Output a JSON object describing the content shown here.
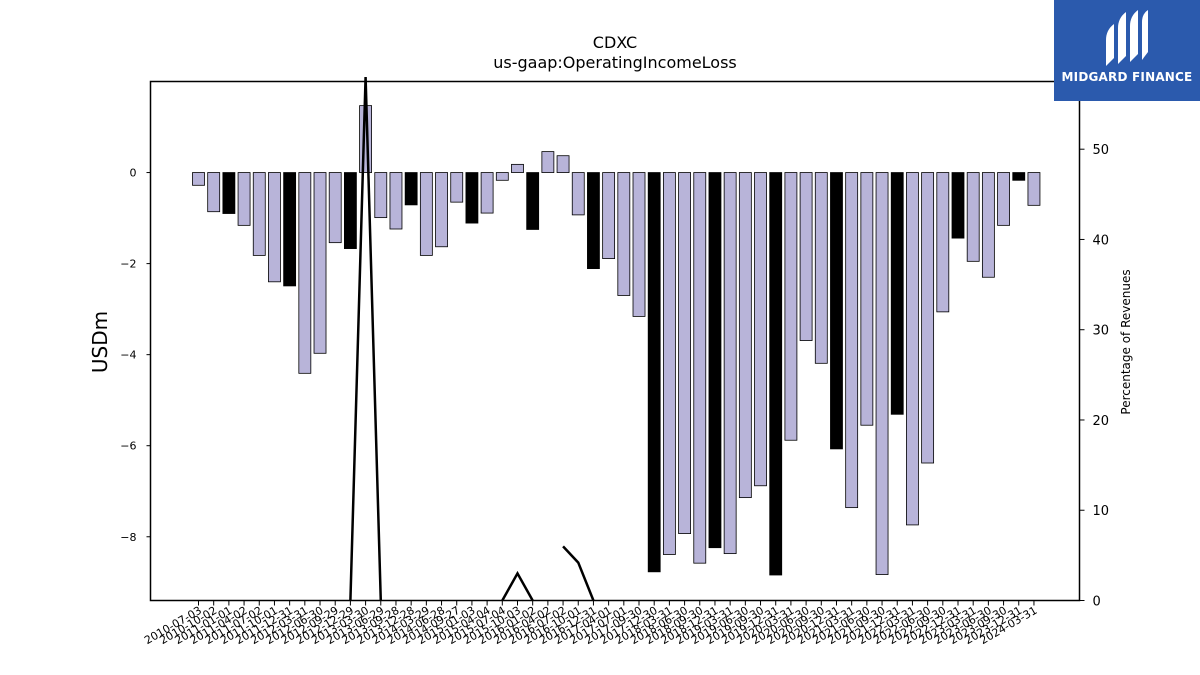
{
  "chart_data": {
    "type": "bar",
    "title": "CDXC",
    "subtitle": "us-gaap:OperatingIncomeLoss",
    "ylabel": "USDm",
    "y2label": "Percentage of Revenues",
    "ylim": [
      -9.4,
      2.0
    ],
    "y2lim": [
      0,
      57.5
    ],
    "yticks": [
      0,
      -2,
      -4,
      -6,
      -8
    ],
    "y2ticks": [
      0,
      10,
      20,
      30,
      40,
      50
    ],
    "x_tick_labels": [
      "2010-07-03",
      "2010-10-02",
      "2011-01-01",
      "2011-04-02",
      "2011-07-02",
      "2011-10-01",
      "2011-12-31",
      "2012-03-31",
      "2012-06-30",
      "2012-09-29",
      "2012-12-29",
      "2013-03-30",
      "2013-06-29",
      "2013-09-28",
      "2013-12-28",
      "2014-03-29",
      "2014-06-28",
      "2014-09-27",
      "2015-01-03",
      "2015-04-04",
      "2015-07-04",
      "2015-10-03",
      "2016-01-02",
      "2016-04-02",
      "2016-07-02",
      "2016-10-01",
      "2016-12-31",
      "2017-04-01",
      "2017-07-01",
      "2017-09-30",
      "2017-12-30",
      "2018-03-31",
      "2018-06-30",
      "2018-09-30",
      "2018-12-31",
      "2019-03-31",
      "2019-06-30",
      "2019-09-30",
      "2019-12-31",
      "2020-03-31",
      "2020-06-30",
      "2020-09-30",
      "2020-12-31",
      "2021-03-31",
      "2021-06-30",
      "2021-09-30",
      "2021-12-31",
      "2022-03-31",
      "2022-06-30",
      "2022-09-30",
      "2022-12-31",
      "2023-03-31",
      "2023-06-30",
      "2023-09-30",
      "2023-12-31",
      "2024-03-31"
    ],
    "values": [
      -0.28,
      -0.86,
      -0.9,
      -1.16,
      -1.82,
      -2.4,
      -2.49,
      -4.41,
      -3.97,
      -1.54,
      -1.67,
      1.47,
      -0.99,
      -1.24,
      -0.71,
      -1.82,
      -1.63,
      -0.65,
      -1.11,
      -0.89,
      -0.17,
      0.18,
      -1.25,
      0.46,
      0.37,
      -0.93,
      -2.11,
      -1.89,
      -2.7,
      -3.16,
      -8.77,
      -8.39,
      -7.93,
      -8.58,
      -8.24,
      -8.37,
      -7.14,
      -6.88,
      -8.84,
      -5.88,
      -3.69,
      -4.19,
      -6.07,
      -7.36,
      -5.55,
      -8.83,
      -5.31,
      -7.74,
      -6.38,
      -3.06,
      -1.44,
      -1.95,
      -2.3,
      -1.16,
      -0.17,
      -0.72
    ],
    "bar_colors": [
      "#b8b4d9",
      "#b8b4d9",
      "#000000",
      "#b8b4d9",
      "#b8b4d9",
      "#b8b4d9",
      "#000000",
      "#b8b4d9",
      "#b8b4d9",
      "#b8b4d9",
      "#000000",
      "#b8b4d9",
      "#b8b4d9",
      "#b8b4d9",
      "#000000",
      "#b8b4d9",
      "#b8b4d9",
      "#b8b4d9",
      "#000000",
      "#b8b4d9",
      "#b8b4d9",
      "#b8b4d9",
      "#000000",
      "#b8b4d9",
      "#b8b4d9",
      "#b8b4d9",
      "#000000",
      "#b8b4d9",
      "#b8b4d9",
      "#b8b4d9",
      "#000000",
      "#b8b4d9",
      "#b8b4d9",
      "#b8b4d9",
      "#000000",
      "#b8b4d9",
      "#b8b4d9",
      "#b8b4d9",
      "#000000",
      "#b8b4d9",
      "#b8b4d9",
      "#b8b4d9",
      "#000000",
      "#b8b4d9",
      "#b8b4d9",
      "#b8b4d9",
      "#000000",
      "#b8b4d9",
      "#b8b4d9",
      "#b8b4d9",
      "#000000",
      "#b8b4d9",
      "#b8b4d9",
      "#b8b4d9",
      "#000000",
      "#b8b4d9"
    ],
    "line_values": [
      null,
      null,
      null,
      null,
      null,
      null,
      null,
      null,
      null,
      null,
      0,
      58,
      0,
      null,
      null,
      null,
      null,
      null,
      null,
      null,
      0,
      3,
      0,
      null,
      6,
      4.2,
      0,
      null,
      null,
      null,
      null,
      null,
      null,
      null,
      null,
      null,
      null,
      null,
      null,
      null,
      null,
      null,
      null,
      null,
      null,
      null,
      null,
      null,
      null,
      null,
      null,
      null,
      null,
      null,
      null,
      null
    ],
    "line_color": "#000000"
  },
  "logo": {
    "text": "MIDGARD FINANCE",
    "color": "#2b5aad"
  }
}
